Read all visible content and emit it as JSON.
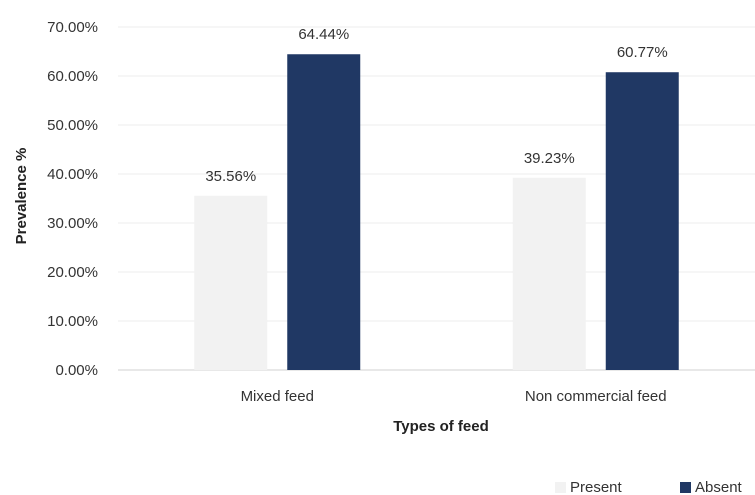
{
  "chart_data": {
    "type": "bar",
    "categories": [
      "Mixed feed",
      "Non commercial feed"
    ],
    "series": [
      {
        "name": "Present",
        "values": [
          35.56,
          39.23
        ],
        "color": "#f2f2f2"
      },
      {
        "name": "Absent",
        "values": [
          64.44,
          60.77
        ],
        "color": "#203864"
      }
    ],
    "data_labels": [
      [
        "35.56%",
        "39.23%"
      ],
      [
        "64.44%",
        "60.77%"
      ]
    ],
    "xlabel": "Types of feed",
    "ylabel": "Prevalence %",
    "ylim": [
      0,
      70
    ],
    "yticks": [
      0,
      10,
      20,
      30,
      40,
      50,
      60,
      70
    ],
    "ytick_labels": [
      "0.00%",
      "10.00%",
      "20.00%",
      "30.00%",
      "40.00%",
      "50.00%",
      "60.00%",
      "70.00%"
    ],
    "grid": true,
    "legend": "bottom-right"
  }
}
